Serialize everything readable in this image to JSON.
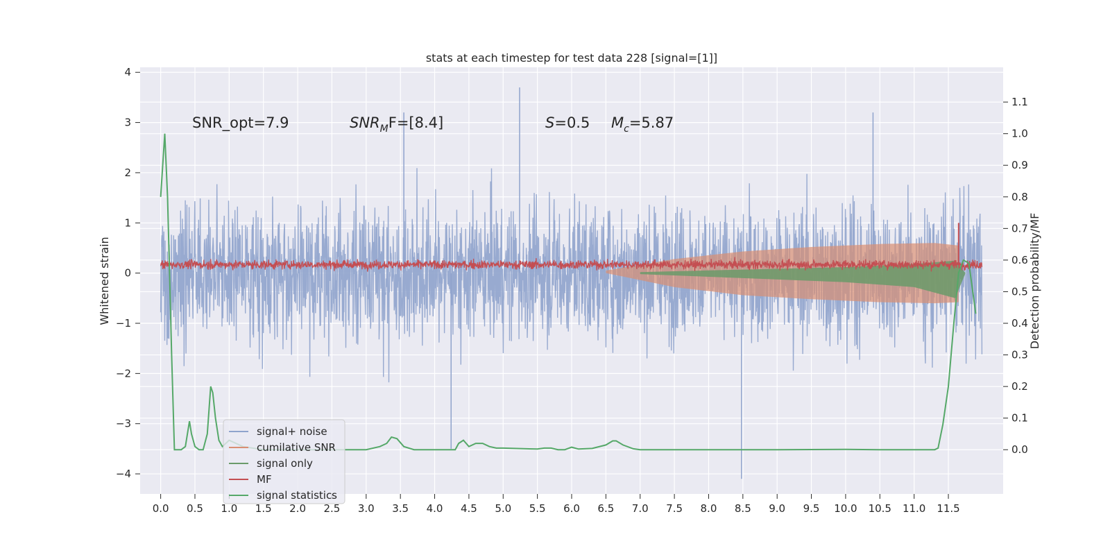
{
  "chart_data": {
    "type": "line",
    "title": "stats at each timestep for test data 228 [signal=[1]]",
    "xlabel": "",
    "ylabel_left": "Whitened strain",
    "ylabel_right": "Detection probability/MF",
    "x_ticks": [
      "0.0",
      "0.5",
      "1.0",
      "1.5",
      "2.0",
      "2.5",
      "3.0",
      "3.5",
      "4.0",
      "4.5",
      "5.0",
      "5.5",
      "6.0",
      "6.5",
      "7.0",
      "7.5",
      "8.0",
      "8.5",
      "9.0",
      "9.5",
      "10.0",
      "10.5",
      "11.0",
      "11.5"
    ],
    "x_range": [
      -0.3,
      12.3
    ],
    "y_left_ticks": [
      "4",
      "3",
      "2",
      "1",
      "0",
      "−1",
      "−2",
      "−3",
      "−4"
    ],
    "y_left_range": [
      -4.4,
      4.1
    ],
    "y_right_ticks": [
      "1.1",
      "1.0",
      "0.9",
      "0.8",
      "0.7",
      "0.6",
      "0.5",
      "0.4",
      "0.3",
      "0.2",
      "0.1",
      "0.0"
    ],
    "y_right_range": [
      -0.14,
      1.21
    ],
    "grid": true,
    "legend_position": "lower-left",
    "annotations": {
      "snr_opt": "SNR_opt=7.9",
      "snr_mf_main": "SNR",
      "snr_mf_sub": "M",
      "snr_mf_rest": "F=[8.4]",
      "s_main": "S",
      "s_rest": "=0.5",
      "mc_main": "M",
      "mc_sub": "c",
      "mc_rest": "=5.87"
    },
    "series": [
      {
        "name": "signal+ noise",
        "color": "#8fa3cc",
        "axis": "left",
        "kind": "noise",
        "x_range": [
          0,
          11.99
        ],
        "envelope_p95": 1.8,
        "max_peaks": [
          3.7,
          -4.1
        ]
      },
      {
        "name": "cumilative SNR",
        "color": "#d98e73",
        "axis": "left",
        "kind": "band",
        "x": [
          6.5,
          7.5,
          8.5,
          9.5,
          10.5,
          11.3,
          11.65
        ],
        "upper": [
          0.05,
          0.28,
          0.43,
          0.52,
          0.58,
          0.6,
          0.55
        ],
        "lower": [
          0.0,
          -0.28,
          -0.44,
          -0.52,
          -0.58,
          -0.6,
          -0.58
        ]
      },
      {
        "name": "signal only",
        "color": "#6a9a6a",
        "axis": "left",
        "kind": "band",
        "x": [
          7.0,
          8.5,
          10.0,
          11.0,
          11.6,
          11.75
        ],
        "upper": [
          0.02,
          0.07,
          0.12,
          0.18,
          0.25,
          0.0
        ],
        "lower": [
          -0.02,
          -0.1,
          -0.18,
          -0.28,
          -0.5,
          0.0
        ]
      },
      {
        "name": "MF",
        "color": "#c44e52",
        "axis": "left",
        "kind": "noise",
        "x_range": [
          0,
          11.99
        ],
        "center": 0.17,
        "amplitude": 0.1,
        "spike": {
          "x": 11.65,
          "y": 1.0
        }
      },
      {
        "name": "signal statistics",
        "color": "#55a868",
        "axis": "right",
        "kind": "line",
        "x": [
          0.0,
          0.06,
          0.1,
          0.13,
          0.16,
          0.2,
          0.25,
          0.3,
          0.36,
          0.42,
          0.45,
          0.5,
          0.56,
          0.62,
          0.68,
          0.73,
          0.76,
          0.8,
          0.85,
          0.9,
          1.0,
          1.2,
          1.5,
          2.0,
          2.5,
          3.0,
          3.2,
          3.3,
          3.37,
          3.45,
          3.55,
          3.7,
          4.0,
          4.3,
          4.35,
          4.42,
          4.5,
          4.6,
          4.7,
          4.8,
          4.9,
          5.0,
          5.5,
          5.6,
          5.7,
          5.8,
          5.9,
          6.0,
          6.1,
          6.3,
          6.5,
          6.6,
          6.65,
          6.75,
          6.9,
          7.0,
          7.5,
          8.0,
          9.0,
          10.0,
          10.5,
          11.0,
          11.3,
          11.35,
          11.42,
          11.5,
          11.58,
          11.65,
          11.72,
          11.8,
          11.9
        ],
        "y": [
          0.8,
          1.0,
          0.8,
          0.55,
          0.3,
          0.0,
          0.0,
          0.0,
          0.01,
          0.09,
          0.05,
          0.01,
          0.0,
          0.0,
          0.05,
          0.2,
          0.18,
          0.1,
          0.03,
          0.01,
          0.03,
          0.01,
          0.0,
          0.0,
          0.0,
          0.0,
          0.01,
          0.02,
          0.04,
          0.035,
          0.01,
          0.0,
          0.0,
          0.0,
          0.02,
          0.03,
          0.01,
          0.02,
          0.02,
          0.01,
          0.005,
          0.005,
          0.002,
          0.005,
          0.005,
          0.0,
          0.0,
          0.008,
          0.002,
          0.004,
          0.015,
          0.028,
          0.028,
          0.015,
          0.003,
          0.0,
          0.0,
          0.0,
          0.0,
          0.001,
          0.0,
          0.0,
          0.0,
          0.005,
          0.08,
          0.2,
          0.4,
          0.56,
          0.6,
          0.59,
          0.43
        ]
      }
    ]
  }
}
